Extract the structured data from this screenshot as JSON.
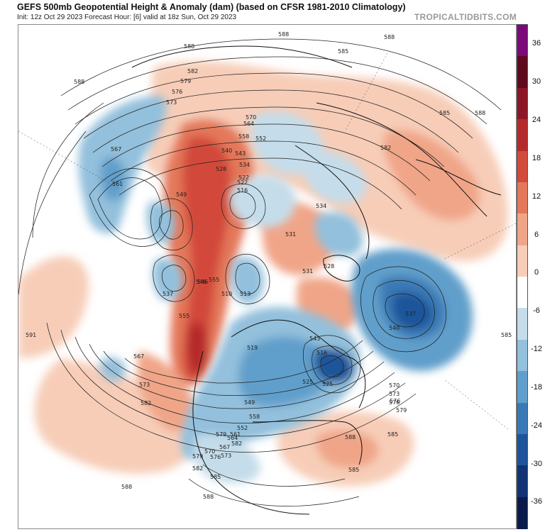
{
  "header": {
    "title": "GEFS 500mb Geopotential Height & Anomaly (dam) (based on CFSR 1981-2010 Climatology)",
    "subtitle": "Init: 12z Oct 29 2023   Forecast Hour: [6]   valid at 18z Sun, Oct 29 2023",
    "brand": "TROPICALTIDBITS.COM"
  },
  "colorbar": {
    "ticks": [
      "36",
      "30",
      "24",
      "18",
      "12",
      "6",
      "0",
      "-6",
      "-12",
      "-18",
      "-24",
      "-30",
      "-36"
    ],
    "colors": [
      "#7a0a7a",
      "#5e0a1e",
      "#8c1626",
      "#b52a2c",
      "#d24a3a",
      "#e4785a",
      "#f0a588",
      "#f7cdb8",
      "#ffffff",
      "#c5ddea",
      "#93c0dc",
      "#609fcb",
      "#3a79b5",
      "#1f549a",
      "#123374",
      "#0a1a4a"
    ]
  },
  "map": {
    "contour_labels": [
      "588",
      "588",
      "588",
      "585",
      "588",
      "582",
      "579",
      "576",
      "573",
      "570",
      "567",
      "564",
      "561",
      "558",
      "555",
      "552",
      "549",
      "546",
      "543",
      "540",
      "537",
      "534",
      "531",
      "528",
      "525",
      "522",
      "519",
      "516",
      "513",
      "510",
      "591",
      "567",
      "573",
      "582",
      "588",
      "585",
      "579",
      "576",
      "570",
      "573",
      "576",
      "579",
      "582",
      "585",
      "588",
      "588",
      "585",
      "582",
      "579",
      "576",
      "573",
      "570",
      "567",
      "564",
      "561",
      "558",
      "555",
      "552",
      "549",
      "546",
      "543",
      "540",
      "537",
      "534",
      "531",
      "528",
      "525",
      "522",
      "516",
      "585",
      "588",
      "585",
      "582"
    ]
  }
}
